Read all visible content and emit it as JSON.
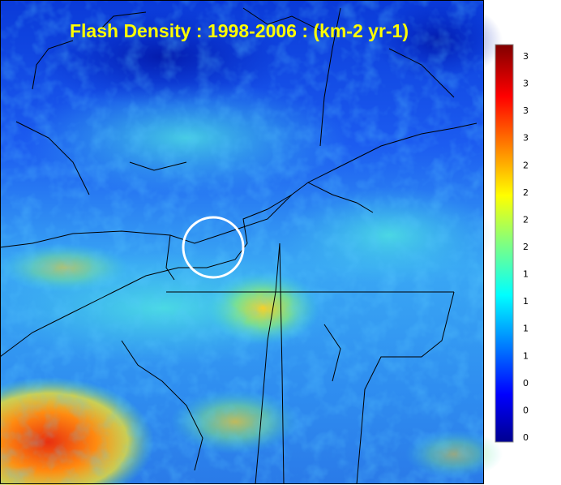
{
  "map": {
    "title": "Flash Density : 1998-2006 : (km-2 yr-1)",
    "colorbar": {
      "labels": [
        "3",
        "3",
        "3",
        "3",
        "2",
        "2",
        "2",
        "2",
        "1",
        "1",
        "1",
        "1",
        "0",
        "0",
        "0"
      ]
    }
  }
}
